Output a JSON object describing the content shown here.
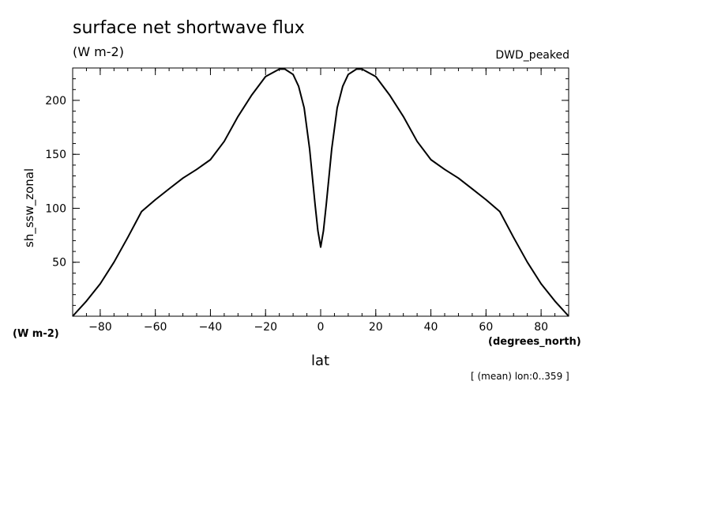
{
  "chart_data": {
    "type": "line",
    "title": "surface net shortwave flux",
    "subtitle": "(W m-2)",
    "dataset_label": "DWD_peaked",
    "ylabel": "sh_ssw_zonal",
    "y_units": "(W m-2)",
    "xlabel": "lat",
    "x_units": "(degrees_north)",
    "footnote": "[ (mean) lon:0..359 ]",
    "xlim": [
      -90,
      90
    ],
    "ylim": [
      0,
      230
    ],
    "x_ticks": [
      -80,
      -60,
      -40,
      -20,
      0,
      20,
      40,
      60,
      80
    ],
    "x_tick_labels": [
      "−80",
      "−60",
      "−40",
      "−20",
      "0",
      "20",
      "40",
      "60",
      "80"
    ],
    "y_ticks": [
      50,
      100,
      150,
      200
    ],
    "y_tick_labels": [
      "50",
      "100",
      "150",
      "200"
    ],
    "grid": false,
    "series": [
      {
        "x": [
          -90,
          -85,
          -80,
          -75,
          -70,
          -65,
          -60,
          -55,
          -50,
          -45,
          -40,
          -35,
          -30,
          -25,
          -20,
          -15,
          -13,
          -10,
          -8,
          -6,
          -4,
          -2,
          -1,
          0,
          1,
          2,
          4,
          6,
          8,
          10,
          13,
          15,
          20,
          25,
          30,
          35,
          40,
          45,
          50,
          55,
          60,
          65,
          70,
          75,
          80,
          85,
          90
        ],
        "y": [
          0,
          14,
          30,
          50,
          73,
          97,
          108,
          118,
          128,
          136,
          145,
          162,
          185,
          205,
          222,
          229,
          229,
          224,
          213,
          193,
          155,
          103,
          79,
          64,
          79,
          103,
          155,
          193,
          213,
          224,
          229,
          229,
          222,
          205,
          185,
          162,
          145,
          136,
          128,
          118,
          108,
          97,
          73,
          50,
          30,
          14,
          0
        ]
      }
    ]
  }
}
